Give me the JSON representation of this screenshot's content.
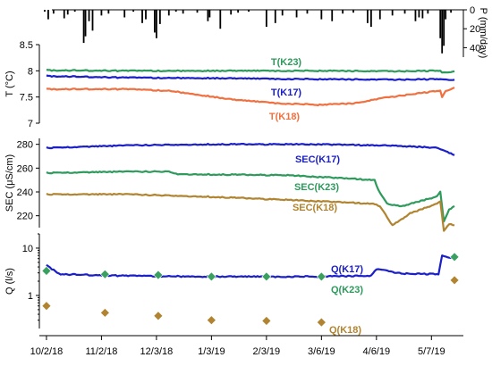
{
  "chart_data": [
    {
      "panel": "precipitation",
      "type": "bar",
      "ylabel": "P (mm/day)",
      "ylim": [
        0,
        50
      ],
      "yticks": [
        "0",
        "20",
        "40"
      ],
      "inverted": true,
      "approx_daily_values": [
        {
          "date": "2018-10-01",
          "P": 2
        },
        {
          "date": "2018-10-03",
          "P": 10
        },
        {
          "date": "2018-10-06",
          "P": 4
        },
        {
          "date": "2018-10-12",
          "P": 9
        },
        {
          "date": "2018-10-14",
          "P": 5
        },
        {
          "date": "2018-10-18",
          "P": 2
        },
        {
          "date": "2018-10-23",
          "P": 35
        },
        {
          "date": "2018-10-24",
          "P": 28
        },
        {
          "date": "2018-10-26",
          "P": 12
        },
        {
          "date": "2018-10-28",
          "P": 22
        },
        {
          "date": "2018-11-02",
          "P": 6
        },
        {
          "date": "2018-11-06",
          "P": 4
        },
        {
          "date": "2018-11-15",
          "P": 8
        },
        {
          "date": "2018-11-20",
          "P": 2
        },
        {
          "date": "2018-11-25",
          "P": 14
        },
        {
          "date": "2018-11-27",
          "P": 10
        },
        {
          "date": "2018-12-02",
          "P": 24
        },
        {
          "date": "2018-12-03",
          "P": 30
        },
        {
          "date": "2018-12-05",
          "P": 15
        },
        {
          "date": "2018-12-10",
          "P": 6
        },
        {
          "date": "2018-12-14",
          "P": 2
        },
        {
          "date": "2018-12-18",
          "P": 4
        },
        {
          "date": "2018-12-26",
          "P": 3
        },
        {
          "date": "2019-01-01",
          "P": 12
        },
        {
          "date": "2019-01-02",
          "P": 8
        },
        {
          "date": "2019-01-08",
          "P": 20
        },
        {
          "date": "2019-01-14",
          "P": 5
        },
        {
          "date": "2019-01-18",
          "P": 3
        },
        {
          "date": "2019-01-24",
          "P": 2
        },
        {
          "date": "2019-02-03",
          "P": 18
        },
        {
          "date": "2019-02-08",
          "P": 14
        },
        {
          "date": "2019-02-12",
          "P": 6
        },
        {
          "date": "2019-02-20",
          "P": 8
        },
        {
          "date": "2019-02-26",
          "P": 4
        },
        {
          "date": "2019-03-06",
          "P": 10
        },
        {
          "date": "2019-03-12",
          "P": 12
        },
        {
          "date": "2019-03-18",
          "P": 4
        },
        {
          "date": "2019-03-24",
          "P": 3
        },
        {
          "date": "2019-04-01",
          "P": 14
        },
        {
          "date": "2019-04-03",
          "P": 18
        },
        {
          "date": "2019-04-08",
          "P": 10
        },
        {
          "date": "2019-04-15",
          "P": 6
        },
        {
          "date": "2019-04-22",
          "P": 4
        },
        {
          "date": "2019-04-28",
          "P": 12
        },
        {
          "date": "2019-04-30",
          "P": 8
        },
        {
          "date": "2019-05-02",
          "P": 9
        },
        {
          "date": "2019-05-05",
          "P": 4
        },
        {
          "date": "2019-05-12",
          "P": 30
        },
        {
          "date": "2019-05-13",
          "P": 46
        },
        {
          "date": "2019-05-14",
          "P": 38
        },
        {
          "date": "2019-05-15",
          "P": 10
        },
        {
          "date": "2019-05-18",
          "P": 3
        }
      ]
    },
    {
      "panel": "temperature",
      "type": "line",
      "ylabel": "T (°C)",
      "ylim": [
        7,
        8.5
      ],
      "yticks": [
        "7",
        "7.5",
        "8",
        "8.5"
      ],
      "series": [
        {
          "name": "T(K23)",
          "color": "#2e9a5c",
          "points": [
            [
              "2018-10-02",
              8.01
            ],
            [
              "2018-11-15",
              8.0
            ],
            [
              "2019-01-01",
              8.0
            ],
            [
              "2019-03-01",
              8.0
            ],
            [
              "2019-04-15",
              7.99
            ],
            [
              "2019-05-12",
              8.0
            ],
            [
              "2019-05-13",
              7.97
            ],
            [
              "2019-05-20",
              7.99
            ]
          ]
        },
        {
          "name": "T(K17)",
          "color": "#1a1fc8",
          "points": [
            [
              "2018-10-02",
              7.9
            ],
            [
              "2018-11-15",
              7.87
            ],
            [
              "2019-01-01",
              7.86
            ],
            [
              "2019-03-01",
              7.84
            ],
            [
              "2019-04-15",
              7.83
            ],
            [
              "2019-05-12",
              7.84
            ],
            [
              "2019-05-20",
              7.83
            ]
          ]
        },
        {
          "name": "T(K18)",
          "color": "#f07040",
          "points": [
            [
              "2018-10-02",
              7.65
            ],
            [
              "2018-11-15",
              7.65
            ],
            [
              "2018-12-10",
              7.62
            ],
            [
              "2018-12-25",
              7.55
            ],
            [
              "2019-01-15",
              7.45
            ],
            [
              "2019-02-10",
              7.38
            ],
            [
              "2019-03-05",
              7.35
            ],
            [
              "2019-03-25",
              7.38
            ],
            [
              "2019-04-08",
              7.47
            ],
            [
              "2019-04-25",
              7.55
            ],
            [
              "2019-05-12",
              7.62
            ],
            [
              "2019-05-13",
              7.5
            ],
            [
              "2019-05-15",
              7.62
            ],
            [
              "2019-05-20",
              7.68
            ]
          ]
        }
      ]
    },
    {
      "panel": "SEC",
      "type": "line",
      "ylabel": "SEC (μS/cm)",
      "ylim": [
        210,
        285
      ],
      "yticks": [
        "220",
        "240",
        "260",
        "280"
      ],
      "series": [
        {
          "name": "SEC(K17)",
          "color": "#1a1fc8",
          "points": [
            [
              "2018-10-02",
              277
            ],
            [
              "2018-11-15",
              279
            ],
            [
              "2019-01-01",
              280
            ],
            [
              "2019-03-01",
              280
            ],
            [
              "2019-04-15",
              279
            ],
            [
              "2019-05-10",
              277
            ],
            [
              "2019-05-20",
              271
            ]
          ]
        },
        {
          "name": "SEC(K23)",
          "color": "#2e9a5c",
          "points": [
            [
              "2018-10-02",
              256
            ],
            [
              "2018-11-15",
              257
            ],
            [
              "2018-12-10",
              257
            ],
            [
              "2018-12-15",
              255
            ],
            [
              "2019-02-15",
              254
            ],
            [
              "2019-04-05",
              250
            ],
            [
              "2019-04-07",
              242
            ],
            [
              "2019-04-12",
              230
            ],
            [
              "2019-04-20",
              228
            ],
            [
              "2019-05-10",
              236
            ],
            [
              "2019-05-12",
              240
            ],
            [
              "2019-05-14",
              215
            ],
            [
              "2019-05-17",
              225
            ],
            [
              "2019-05-20",
              228
            ]
          ]
        },
        {
          "name": "SEC(K18)",
          "color": "#b08430",
          "points": [
            [
              "2018-10-02",
              238
            ],
            [
              "2018-11-15",
              238
            ],
            [
              "2019-01-01",
              236
            ],
            [
              "2019-02-20",
              233
            ],
            [
              "2019-04-05",
              230
            ],
            [
              "2019-04-08",
              228
            ],
            [
              "2019-04-15",
              212
            ],
            [
              "2019-04-25",
              222
            ],
            [
              "2019-05-10",
              230
            ],
            [
              "2019-05-12",
              232
            ],
            [
              "2019-05-14",
              207
            ],
            [
              "2019-05-17",
              213
            ],
            [
              "2019-05-20",
              212
            ]
          ]
        }
      ]
    },
    {
      "panel": "discharge",
      "type": "line",
      "ylabel": "Q (l/s)",
      "yscale": "log",
      "ylim": [
        0.2,
        20
      ],
      "yticks": [
        "1",
        "10"
      ],
      "series": [
        {
          "name": "Q(K17)",
          "color": "#1a1fc8",
          "points": [
            [
              "2018-10-02",
              4.3
            ],
            [
              "2018-10-10",
              2.8
            ],
            [
              "2018-11-15",
              2.6
            ],
            [
              "2019-01-01",
              2.5
            ],
            [
              "2019-03-01",
              2.5
            ],
            [
              "2019-04-03",
              2.6
            ],
            [
              "2019-04-06",
              3.6
            ],
            [
              "2019-04-20",
              2.9
            ],
            [
              "2019-05-11",
              2.8
            ],
            [
              "2019-05-13",
              7.0
            ],
            [
              "2019-05-16",
              6.5
            ],
            [
              "2019-05-20",
              6.3
            ]
          ]
        },
        {
          "name": "Q(K23)",
          "type": "scatter",
          "color": "#3aa060",
          "points": [
            [
              "2018-10-02",
              3.3
            ],
            [
              "2018-11-04",
              2.8
            ],
            [
              "2018-12-04",
              2.7
            ],
            [
              "2019-01-03",
              2.5
            ],
            [
              "2019-02-03",
              2.5
            ],
            [
              "2019-03-06",
              2.5
            ],
            [
              "2019-05-20",
              6.5
            ]
          ]
        },
        {
          "name": "Q(K18)",
          "type": "scatter",
          "color": "#b08430",
          "points": [
            [
              "2018-10-02",
              0.6
            ],
            [
              "2018-11-04",
              0.43
            ],
            [
              "2018-12-04",
              0.37
            ],
            [
              "2019-01-03",
              0.3
            ],
            [
              "2019-02-03",
              0.29
            ],
            [
              "2019-03-06",
              0.27
            ],
            [
              "2019-05-20",
              2.1
            ]
          ]
        }
      ]
    },
    {
      "panel": "x-axis",
      "type": "time",
      "xlim": [
        "2018-09-28",
        "2019-05-25"
      ],
      "ticks": [
        {
          "date": "2018-10-02",
          "label": "10/2/18"
        },
        {
          "date": "2018-11-02",
          "label": "11/2/18"
        },
        {
          "date": "2018-12-03",
          "label": "12/3/18"
        },
        {
          "date": "2019-01-03",
          "label": "1/3/19"
        },
        {
          "date": "2019-02-03",
          "label": "2/3/19"
        },
        {
          "date": "2019-03-06",
          "label": "3/6/19"
        },
        {
          "date": "2019-04-06",
          "label": "4/6/19"
        },
        {
          "date": "2019-05-07",
          "label": "5/7/19"
        }
      ]
    }
  ]
}
